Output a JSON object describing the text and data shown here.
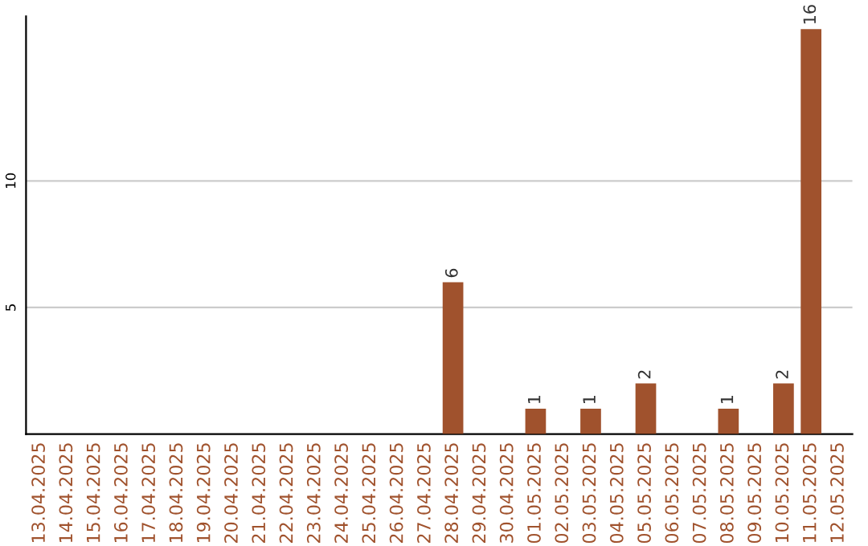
{
  "chart_data": {
    "type": "bar",
    "categories": [
      "13.04.2025",
      "14.04.2025",
      "15.04.2025",
      "16.04.2025",
      "17.04.2025",
      "18.04.2025",
      "19.04.2025",
      "20.04.2025",
      "21.04.2025",
      "22.04.2025",
      "23.04.2025",
      "24.04.2025",
      "25.04.2025",
      "26.04.2025",
      "27.04.2025",
      "28.04.2025",
      "29.04.2025",
      "30.04.2025",
      "01.05.2025",
      "02.05.2025",
      "03.05.2025",
      "04.05.2025",
      "05.05.2025",
      "06.05.2025",
      "07.05.2025",
      "08.05.2025",
      "09.05.2025",
      "10.05.2025",
      "11.05.2025",
      "12.05.2025"
    ],
    "values": [
      0,
      0,
      0,
      0,
      0,
      0,
      0,
      0,
      0,
      0,
      0,
      0,
      0,
      0,
      0,
      6,
      0,
      0,
      1,
      0,
      1,
      0,
      2,
      0,
      0,
      1,
      0,
      2,
      16,
      0
    ],
    "value_labels": [
      null,
      null,
      null,
      null,
      null,
      null,
      null,
      null,
      null,
      null,
      null,
      null,
      null,
      null,
      null,
      "6",
      null,
      null,
      "1",
      null,
      "1",
      null,
      "2",
      null,
      null,
      "1",
      null,
      "2",
      "16",
      null
    ],
    "color": "#a0522d",
    "ylim": [
      0,
      16.5
    ],
    "yticks": [
      5,
      10
    ],
    "grid": "y"
  }
}
